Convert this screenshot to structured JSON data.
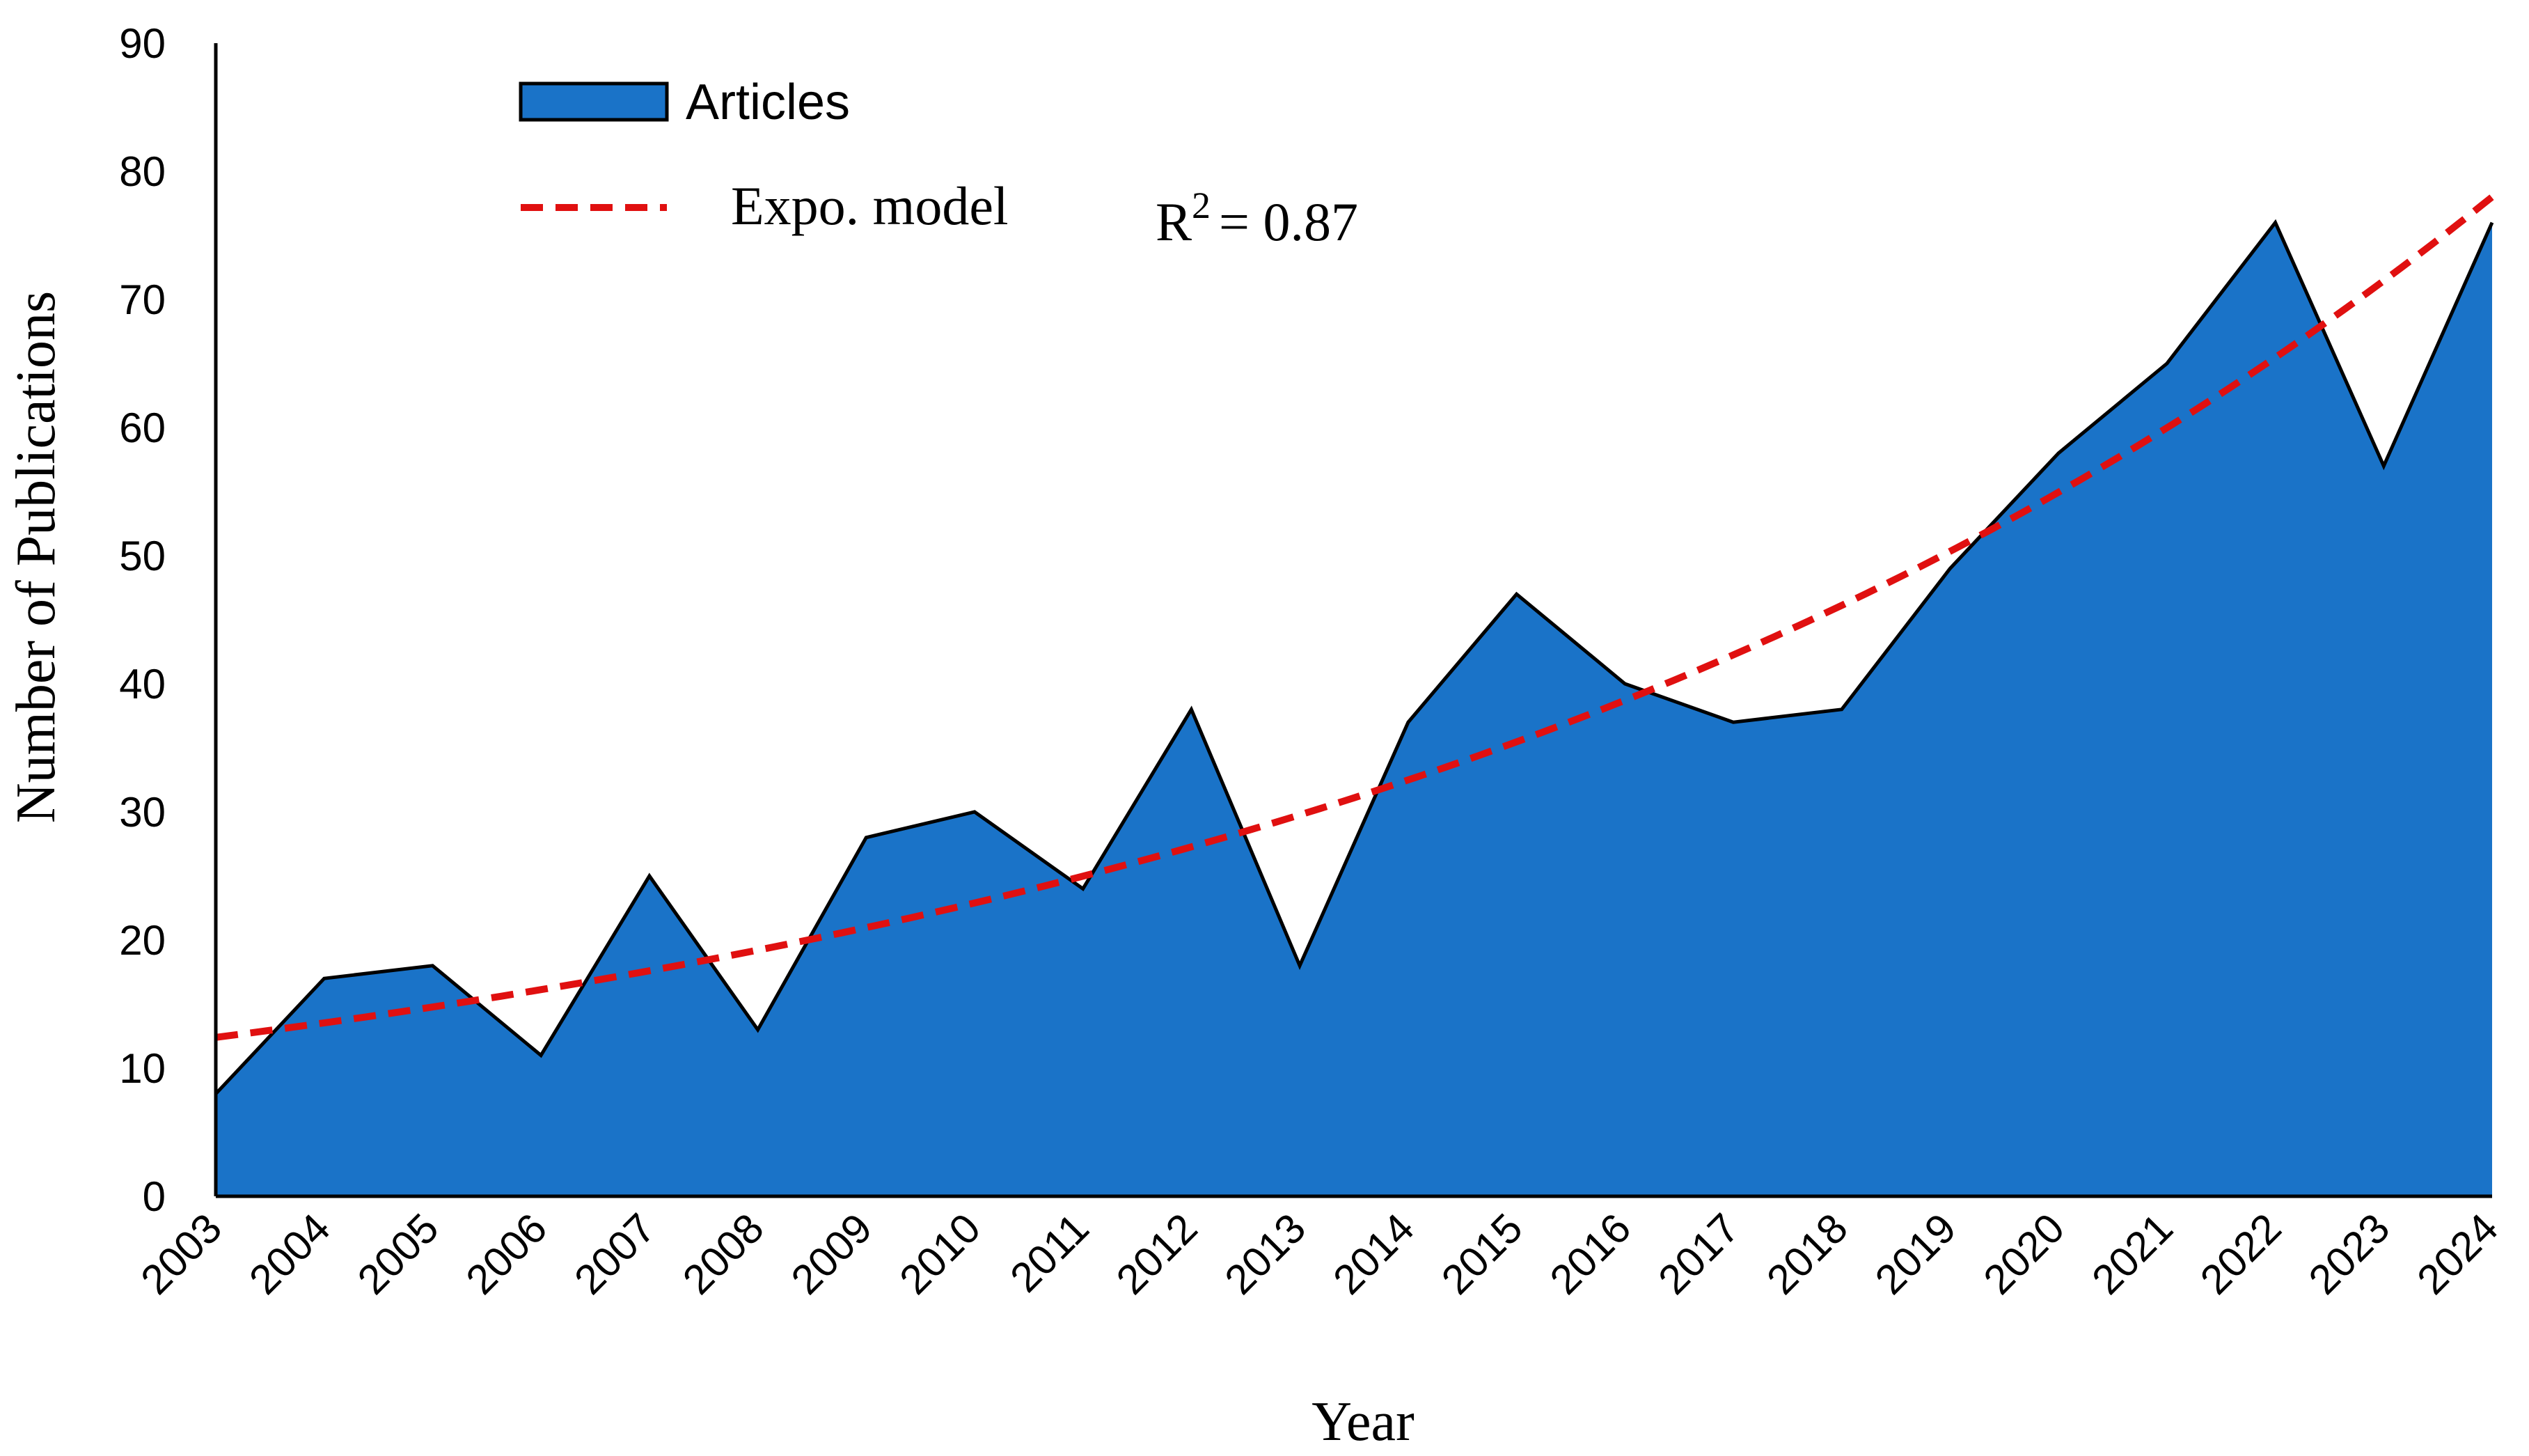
{
  "chart_data": {
    "type": "area",
    "title": "",
    "xlabel": "Year",
    "ylabel": "Number of Publications",
    "ylim": [
      0,
      90
    ],
    "yticks": [
      0,
      10,
      20,
      30,
      40,
      50,
      60,
      70,
      80,
      90
    ],
    "grid": false,
    "legend_position": "top-left",
    "categories": [
      "2003",
      "2004",
      "2005",
      "2006",
      "2007",
      "2008",
      "2009",
      "2010",
      "2011",
      "2012",
      "2013",
      "2014",
      "2015",
      "2016",
      "2017",
      "2018",
      "2019",
      "2020",
      "2021",
      "2022",
      "2023",
      "2024"
    ],
    "series": [
      {
        "name": "Articles",
        "type": "area",
        "color": "#1a73c8",
        "line_color": "#000000",
        "values": [
          8,
          17,
          18,
          11,
          25,
          13,
          28,
          30,
          24,
          38,
          18,
          37,
          47,
          40,
          37,
          38,
          49,
          58,
          65,
          76,
          57,
          76
        ]
      },
      {
        "name": "Expo. model",
        "type": "line",
        "style": "dashed",
        "color": "#e01010",
        "values": [
          12.4,
          13.6,
          14.7,
          16.1,
          17.5,
          19.1,
          20.9,
          22.8,
          24.9,
          27.2,
          29.7,
          32.4,
          35.4,
          38.6,
          42.2,
          46.0,
          50.2,
          54.9,
          59.9,
          65.4,
          71.4,
          78.0
        ]
      }
    ],
    "annotation": {
      "base": "R",
      "superscript": "2",
      "equals": "= 0.87"
    }
  }
}
